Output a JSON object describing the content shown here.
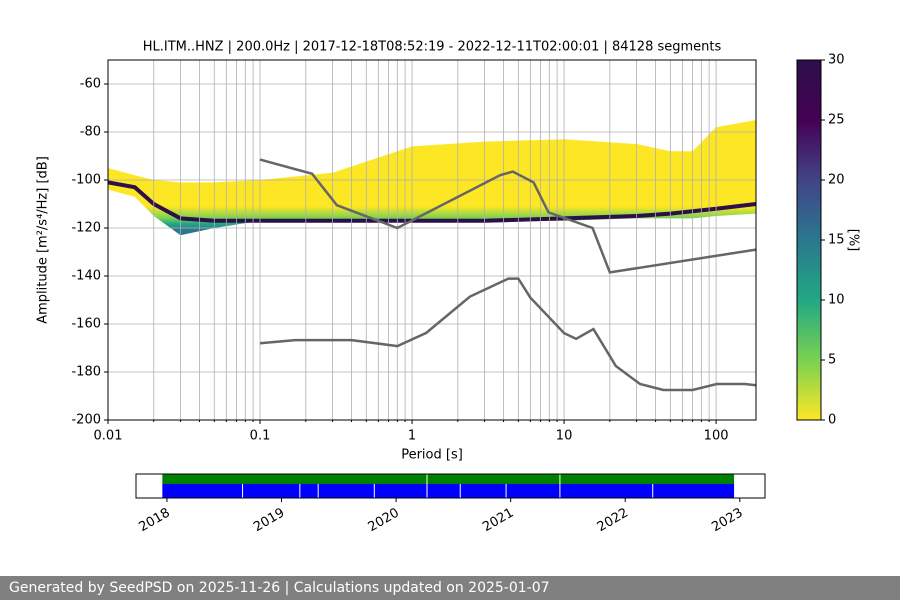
{
  "chart_data": [
    {
      "type": "ppsd",
      "title": "HL.ITM..HNZ | 200.0Hz | 2017-12-18T08:52:19 - 2022-12-11T02:00:01 | 84128 segments",
      "xlabel": "Period [s]",
      "ylabel": "Amplitude [m²/s⁴/Hz] [dB]",
      "xscale": "log",
      "xlim": [
        0.01,
        183
      ],
      "xticks": [
        0.01,
        0.1,
        1,
        10,
        100
      ],
      "xminorticks": [
        0.02,
        0.03,
        0.04,
        0.05,
        0.06,
        0.07,
        0.08,
        0.09,
        0.2,
        0.3,
        0.4,
        0.5,
        0.6,
        0.7,
        0.8,
        0.9,
        2,
        3,
        4,
        5,
        6,
        7,
        8,
        9,
        20,
        30,
        40,
        50,
        60,
        70,
        80,
        90
      ],
      "ylim": [
        -200,
        -50
      ],
      "yticks": [
        -200,
        -180,
        -160,
        -140,
        -120,
        -100,
        -80,
        -60
      ],
      "grid": true,
      "density": {
        "x": [
          0.01,
          0.015,
          0.02,
          0.03,
          0.05,
          0.1,
          0.3,
          1,
          3,
          10,
          30,
          50,
          70,
          100,
          183
        ],
        "low": [
          -104,
          -107,
          -115,
          -123,
          -120,
          -117,
          -117,
          -117,
          -117,
          -117,
          -116,
          -116,
          -116,
          -115,
          -114
        ],
        "high": [
          -95,
          -98,
          -100,
          -101,
          -101,
          -100,
          -97,
          -86,
          -84,
          -83,
          -85,
          -88,
          -88,
          -78,
          -75
        ],
        "mode": [
          -101,
          -103,
          -110,
          -116,
          -117,
          -117,
          -117,
          -117,
          -117,
          -116,
          -115,
          -114,
          -113,
          -112,
          -110
        ],
        "band_color": "#fde725",
        "mode_color": "#2d0f4a"
      },
      "series": [
        {
          "color": "#666666",
          "x": [
            0.1,
            0.22,
            0.32,
            0.8,
            3.8,
            4.6,
            6.3,
            7.9,
            15.4,
            20,
            183
          ],
          "values": [
            -91.5,
            -97.4,
            -110.5,
            -120,
            -98,
            -96.5,
            -101,
            -113.5,
            -120,
            -138.5,
            -129
          ]
        },
        {
          "color": "#666666",
          "x": [
            0.1,
            0.17,
            0.4,
            0.8,
            1.24,
            2.4,
            4.3,
            5,
            6,
            10,
            12,
            15.6,
            21.9,
            31.6,
            45,
            70,
            101,
            154,
            183
          ],
          "values": [
            -168,
            -166.7,
            -166.7,
            -169.2,
            -163.7,
            -148.6,
            -141.1,
            -141.1,
            -149,
            -163.8,
            -166.2,
            -162.1,
            -177.5,
            -185,
            -187.5,
            -187.5,
            -185,
            -185,
            -185.5
          ]
        }
      ],
      "colorbar": {
        "label": "[%]",
        "lim": [
          0,
          30
        ],
        "ticks": [
          0,
          5,
          10,
          15,
          20,
          25,
          30
        ],
        "colors": [
          "#fde725",
          "#7ad151",
          "#22a884",
          "#2a788e",
          "#414487",
          "#440154",
          "#2d0f4a"
        ]
      }
    },
    {
      "type": "timeline",
      "xlim": [
        2017.73,
        2023.22
      ],
      "xticks": [
        2018,
        2019,
        2020,
        2021,
        2022,
        2023
      ],
      "bars": [
        {
          "color": "#008000",
          "start": 2017.96,
          "end": 2022.95,
          "gaps": [
            2020.27,
            2021.43
          ]
        },
        {
          "color": "#0000ff",
          "start": 2017.96,
          "end": 2022.95,
          "gaps": [
            2018.66,
            2019.16,
            2019.32,
            2019.81,
            2020.27,
            2020.56,
            2020.96,
            2021.43,
            2022.24
          ]
        }
      ]
    }
  ],
  "footer": "Generated by SeedPSD on 2025-11-26 | Calculations updated on 2025-01-07"
}
